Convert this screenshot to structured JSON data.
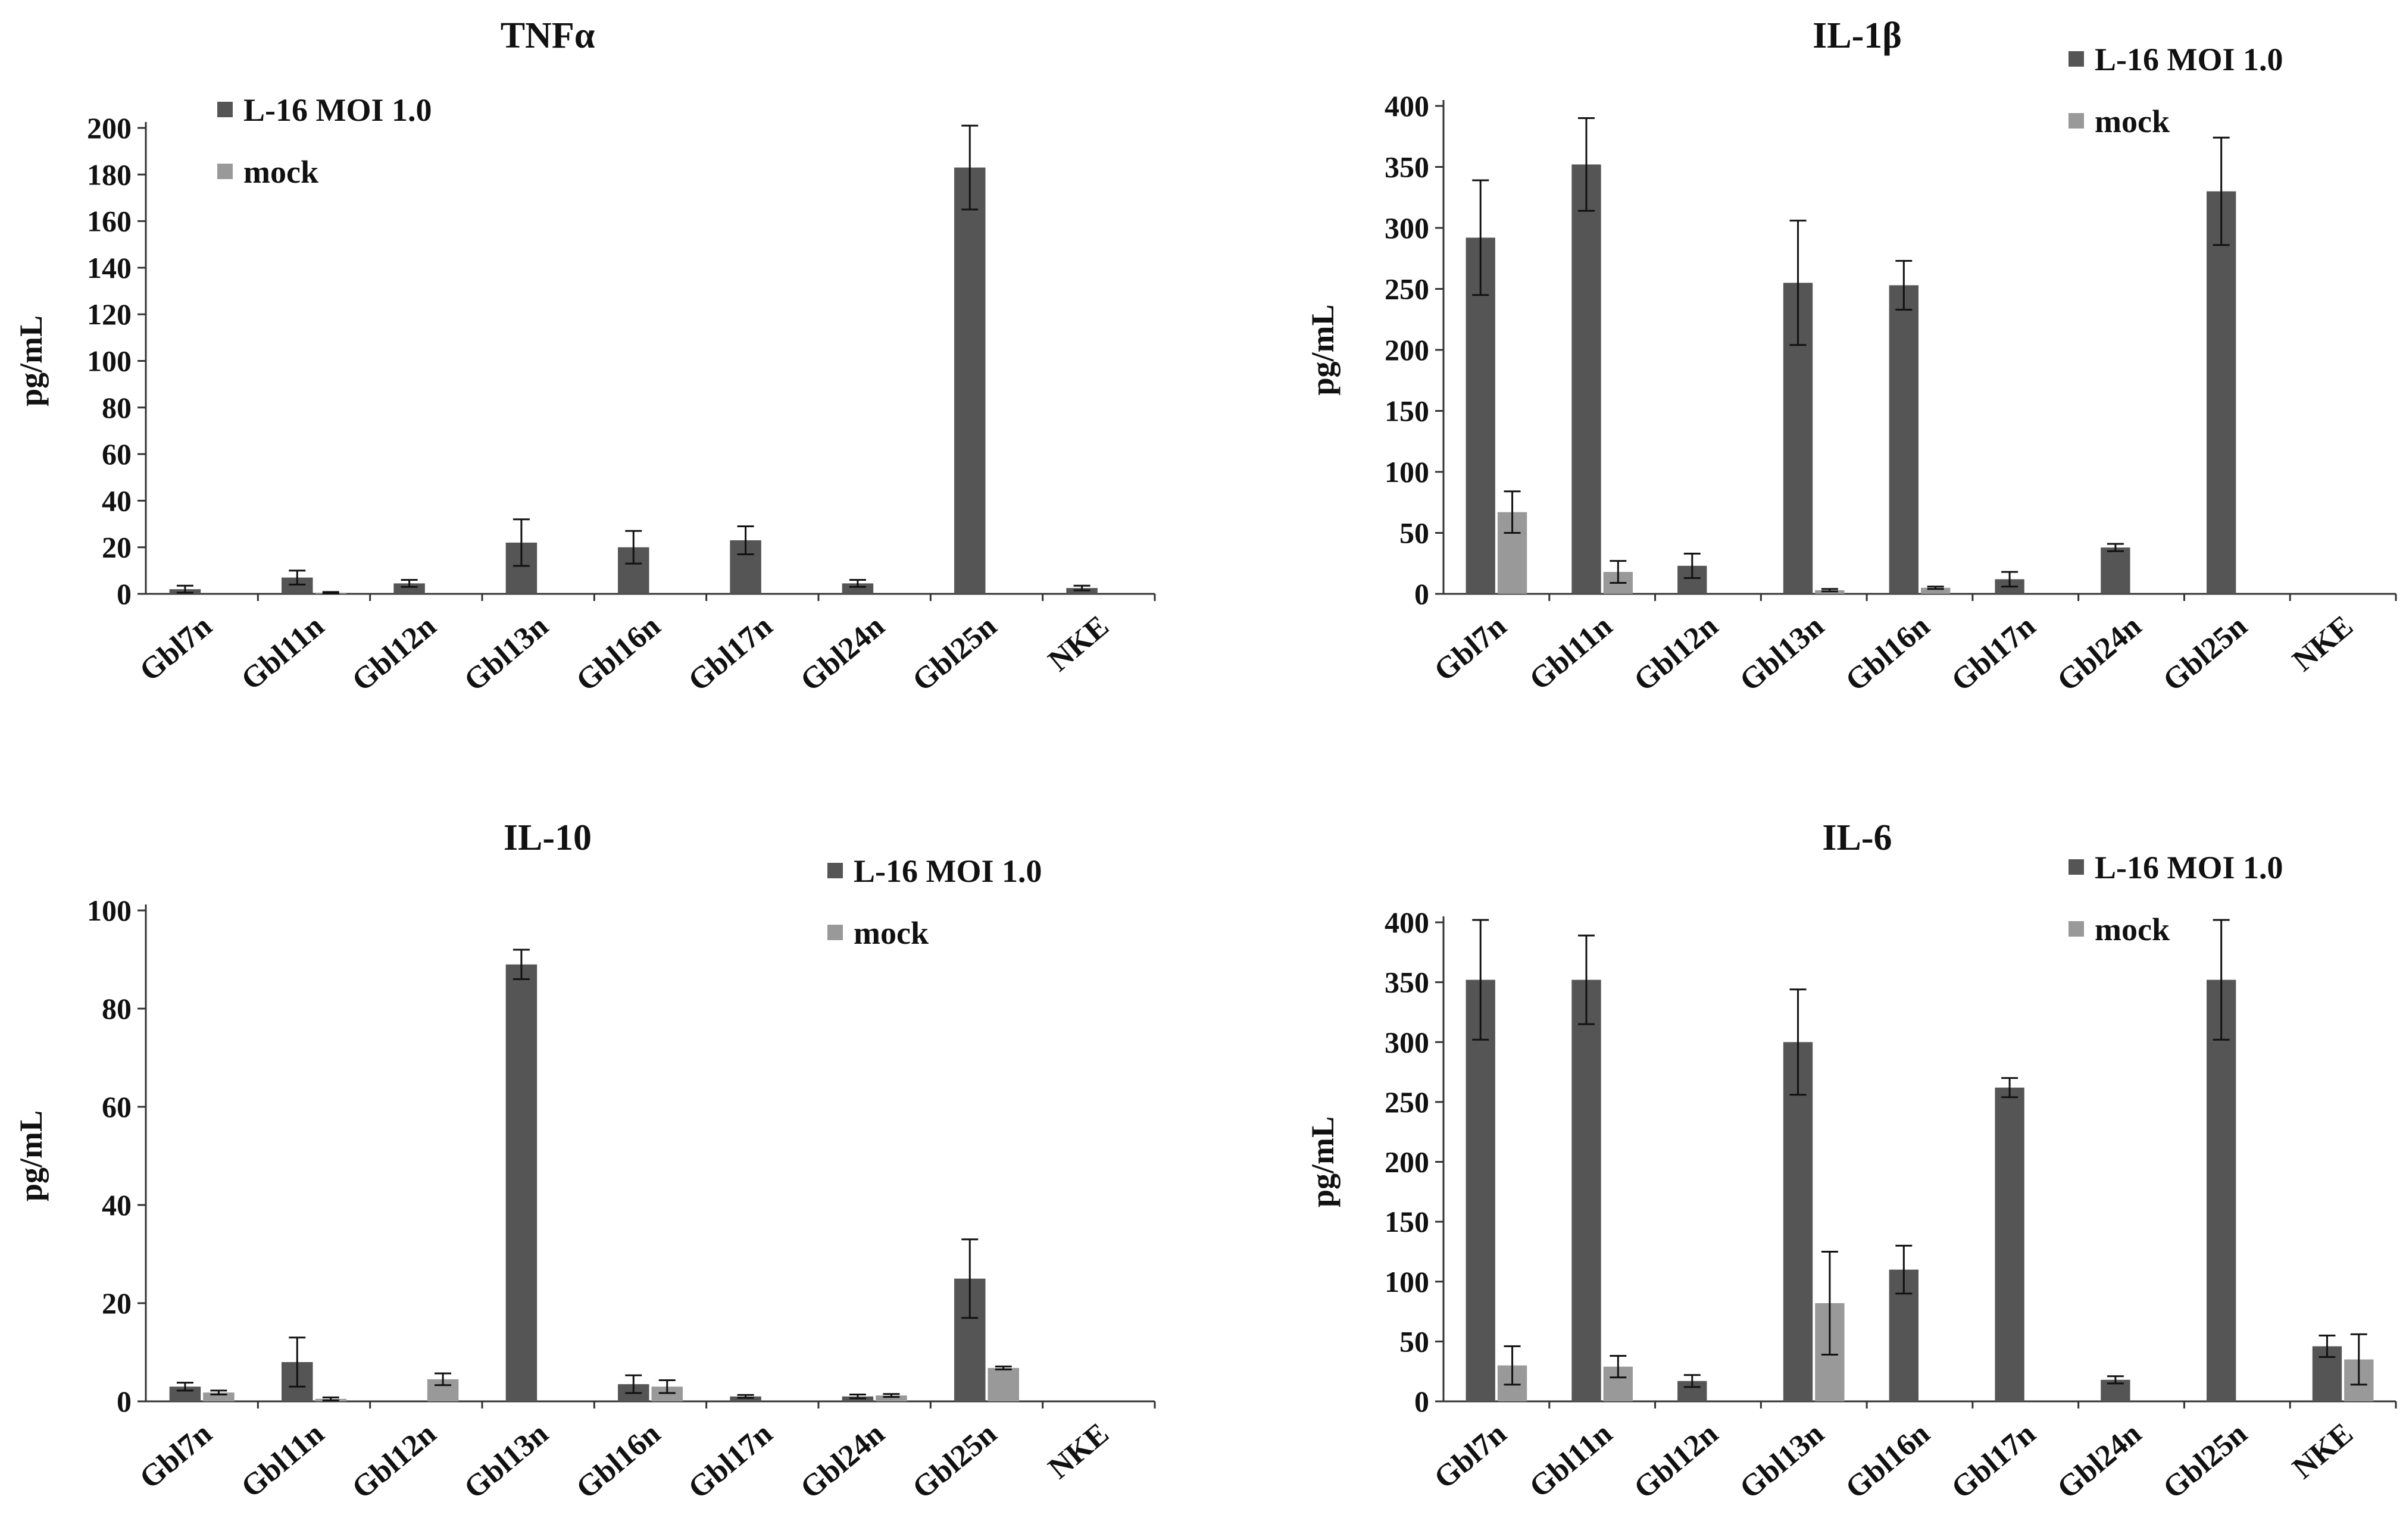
{
  "colors": {
    "infected": "#555555",
    "mock": "#999999"
  },
  "chart_data": [
    {
      "type": "bar",
      "title": "TNFα",
      "ylabel": "pg/mL",
      "xlabel": "",
      "ylim": [
        0,
        200
      ],
      "yticks": [
        0,
        20,
        40,
        60,
        80,
        100,
        120,
        140,
        160,
        180,
        200
      ],
      "legend_position": "top-left",
      "categories": [
        "Gbl7n",
        "Gbl11n",
        "Gbl12n",
        "Gbl13n",
        "Gbl16n",
        "Gbl17n",
        "Gbl24n",
        "Gbl25n",
        "NKE"
      ],
      "series": [
        {
          "name": "L-16 MOI 1.0",
          "values": [
            2,
            7,
            4.5,
            22,
            20,
            23,
            4.5,
            183,
            2.5
          ],
          "errors": [
            1.5,
            3,
            1.5,
            10,
            7,
            6,
            1.5,
            18,
            1
          ]
        },
        {
          "name": "mock",
          "values": [
            0,
            0.5,
            0,
            0,
            0,
            0,
            0,
            0,
            0
          ],
          "errors": [
            0,
            0.3,
            0,
            0,
            0,
            0,
            0,
            0,
            0
          ]
        }
      ]
    },
    {
      "type": "bar",
      "title": "IL-1β",
      "ylabel": "pg/mL",
      "xlabel": "",
      "ylim": [
        0,
        400
      ],
      "yticks": [
        0,
        50,
        100,
        150,
        200,
        250,
        300,
        350,
        400
      ],
      "legend_position": "top-right",
      "categories": [
        "Gbl7n",
        "Gbl11n",
        "Gbl12n",
        "Gbl13n",
        "Gbl16n",
        "Gbl17n",
        "Gbl24n",
        "Gbl25n",
        "NKE"
      ],
      "series": [
        {
          "name": "L-16 MOI 1.0",
          "values": [
            292,
            352,
            23,
            255,
            253,
            12,
            38,
            330,
            0
          ],
          "errors": [
            47,
            38,
            10,
            51,
            20,
            6,
            3,
            44,
            0
          ]
        },
        {
          "name": "mock",
          "values": [
            67,
            18,
            0,
            3,
            5,
            0,
            0,
            0,
            0
          ],
          "errors": [
            17,
            9,
            0,
            1,
            1,
            0,
            0,
            0,
            0
          ]
        }
      ]
    },
    {
      "type": "bar",
      "title": "IL-10",
      "ylabel": "pg/mL",
      "xlabel": "",
      "ylim": [
        0,
        100
      ],
      "yticks": [
        0,
        20,
        40,
        60,
        80,
        100
      ],
      "legend_position": "top-right",
      "categories": [
        "Gbl7n",
        "Gbl11n",
        "Gbl12n",
        "Gbl13n",
        "Gbl16n",
        "Gbl17n",
        "Gbl24n",
        "Gbl25n",
        "NKE"
      ],
      "series": [
        {
          "name": "L-16 MOI 1.0",
          "values": [
            3,
            8,
            0,
            89,
            3.5,
            1,
            1,
            25,
            0
          ],
          "errors": [
            0.8,
            5,
            0,
            3,
            1.8,
            0.3,
            0.4,
            8,
            0
          ]
        },
        {
          "name": "mock",
          "values": [
            1.8,
            0.5,
            4.5,
            0,
            3,
            0,
            1.2,
            6.8,
            0
          ],
          "errors": [
            0.4,
            0.3,
            1.2,
            0,
            1.3,
            0,
            0.3,
            0.3,
            0
          ]
        }
      ]
    },
    {
      "type": "bar",
      "title": "IL-6",
      "ylabel": "pg/mL",
      "xlabel": "",
      "ylim": [
        0,
        400
      ],
      "yticks": [
        0,
        50,
        100,
        150,
        200,
        250,
        300,
        350,
        400
      ],
      "legend_position": "top-right",
      "categories": [
        "Gbl7n",
        "Gbl11n",
        "Gbl12n",
        "Gbl13n",
        "Gbl16n",
        "Gbl17n",
        "Gbl24n",
        "Gbl25n",
        "NKE"
      ],
      "series": [
        {
          "name": "L-16 MOI 1.0",
          "values": [
            352,
            352,
            17,
            300,
            110,
            262,
            18,
            352,
            46
          ],
          "errors": [
            50,
            37,
            5,
            44,
            20,
            8,
            3,
            50,
            9
          ]
        },
        {
          "name": "mock",
          "values": [
            30,
            29,
            0,
            82,
            0,
            0,
            0,
            0,
            35
          ],
          "errors": [
            16,
            9,
            0,
            43,
            0,
            0,
            0,
            0,
            21
          ]
        }
      ]
    }
  ]
}
